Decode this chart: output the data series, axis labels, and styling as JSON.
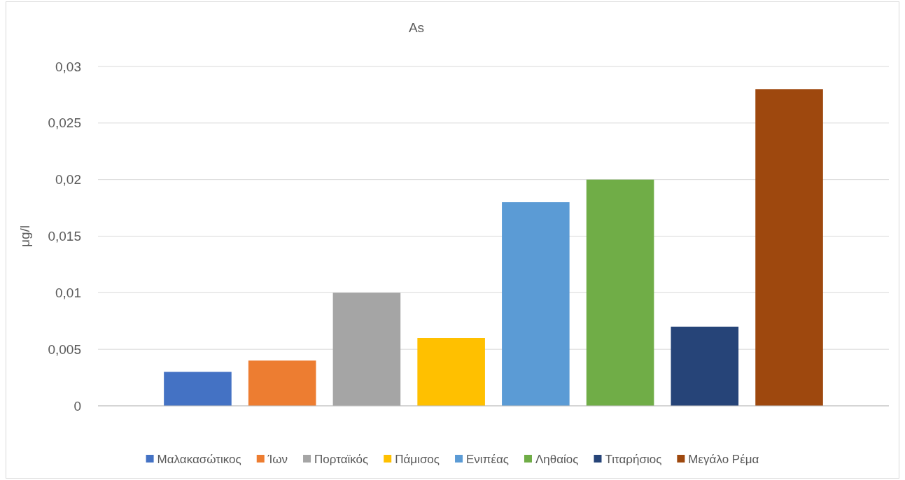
{
  "chart_data": {
    "type": "bar",
    "title": "As",
    "ylabel": "μg/l",
    "categories": [
      null
    ],
    "series": [
      {
        "name": "Μαλακασώτικος",
        "color": "#4472c4",
        "values": [
          0.003
        ]
      },
      {
        "name": "Ίων",
        "color": "#ed7d31",
        "values": [
          0.004
        ]
      },
      {
        "name": "Πορταϊκός",
        "color": "#a5a5a5",
        "values": [
          0.01
        ]
      },
      {
        "name": "Πάμισος",
        "color": "#ffc000",
        "values": [
          0.006
        ]
      },
      {
        "name": "Ενιπέας",
        "color": "#5b9bd5",
        "values": [
          0.018
        ]
      },
      {
        "name": "Ληθαίος",
        "color": "#70ad47",
        "values": [
          0.02
        ]
      },
      {
        "name": "Τιταρήσιος",
        "color": "#264478",
        "values": [
          0.007
        ]
      },
      {
        "name": "Μεγάλο Ρέμα",
        "color": "#9e480e",
        "values": [
          0.028
        ]
      }
    ],
    "ylim": [
      0,
      0.03
    ],
    "yticks": [
      0,
      {
        "value": 0.005,
        "label": "0,005"
      },
      {
        "value": 0.01,
        "label": "0,01"
      },
      {
        "value": 0.015,
        "label": "0,015"
      },
      {
        "value": 0.02,
        "label": "0,02"
      },
      {
        "value": 0.025,
        "label": "0,025"
      },
      {
        "value": 0.03,
        "label": "0,03"
      }
    ],
    "grid": "y",
    "legend": "bottom"
  }
}
